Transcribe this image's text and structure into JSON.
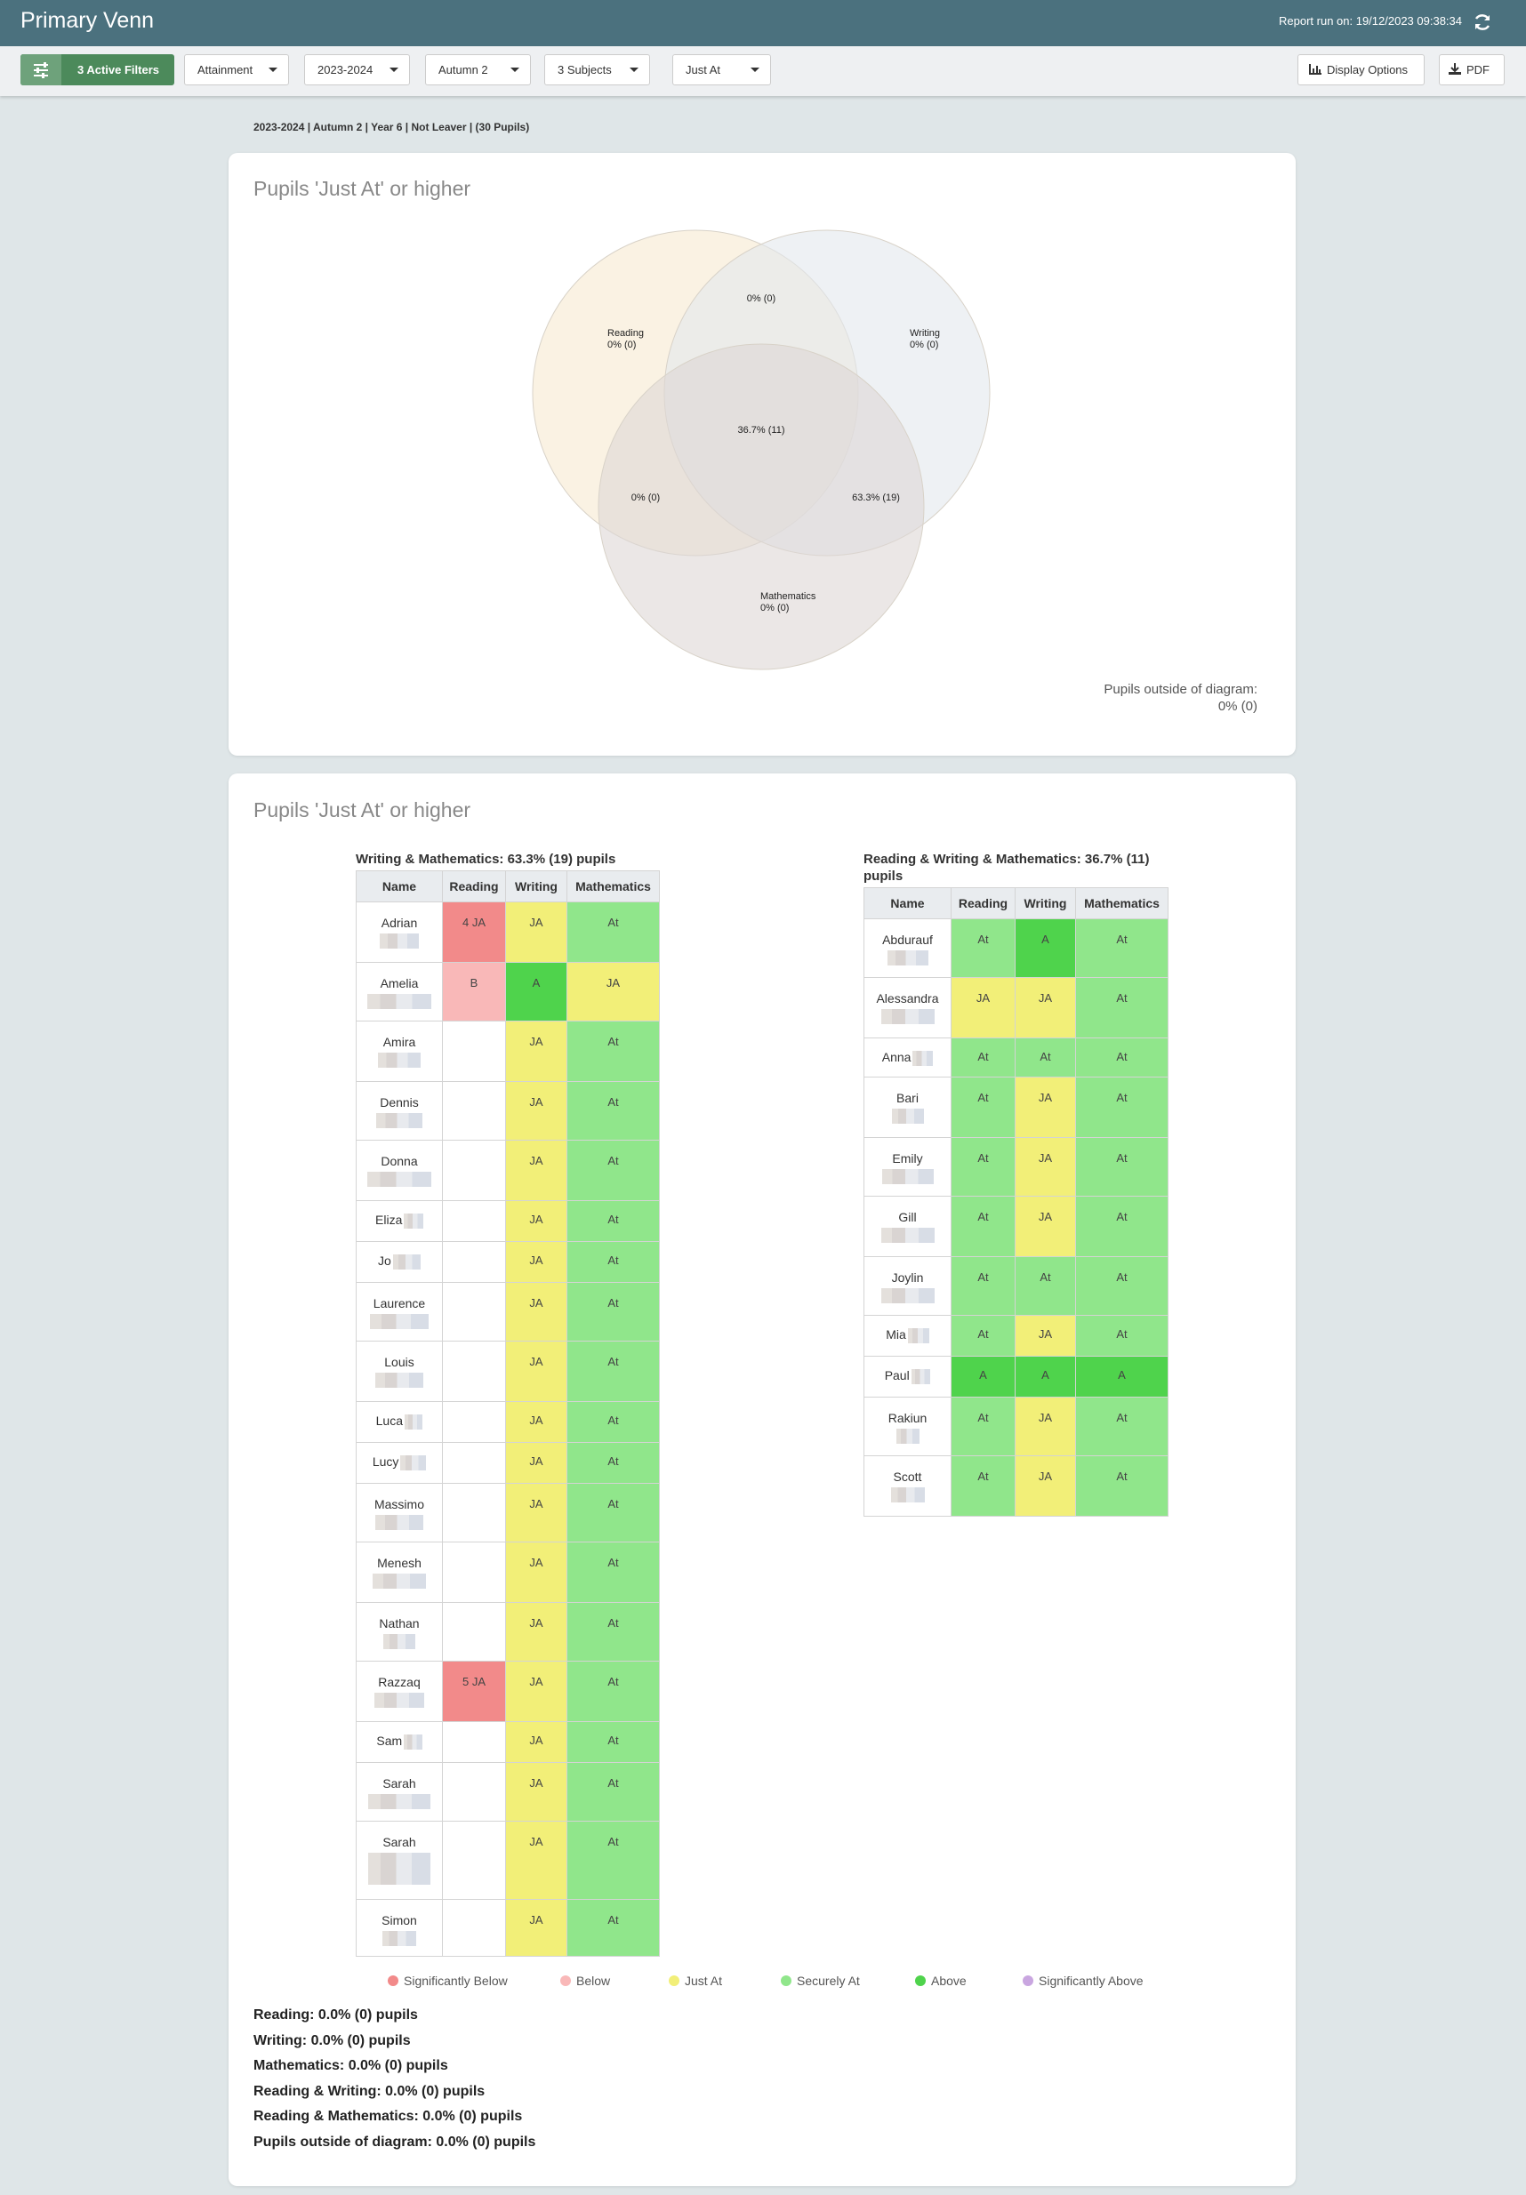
{
  "header": {
    "title": "Primary Venn",
    "report_run": "Report run on: 19/12/2023 09:38:34"
  },
  "toolbar": {
    "filters": "3 Active Filters",
    "dropdowns": [
      "Attainment",
      "2023-2024",
      "Autumn 2",
      "3 Subjects",
      "Just At"
    ],
    "display_options": "Display Options",
    "pdf": "PDF"
  },
  "context": "2023-2024 | Autumn 2 | Year 6 |  Not Leaver | (30 Pupils)",
  "venn": {
    "title": "Pupils 'Just At' or higher",
    "sets": [
      {
        "label": "Reading",
        "value": "0% (0)",
        "color": "#f6ead0"
      },
      {
        "label": "Writing",
        "value": "0% (0)",
        "color": "#e3e7ec"
      },
      {
        "label": "Mathematics",
        "value": "0% (0)",
        "color": "#ddd7d6"
      }
    ],
    "regions": [
      {
        "sets": "Reading & Writing",
        "value": "0% (0)"
      },
      {
        "sets": "Reading & Mathematics",
        "value": "0% (0)"
      },
      {
        "sets": "Writing & Mathematics",
        "value": "63.3% (19)"
      },
      {
        "sets": "Reading & Writing & Mathematics",
        "value": "36.7% (11)"
      }
    ],
    "outside_label": "Pupils outside of diagram:",
    "outside_value": "0% (0)"
  },
  "section_title": "Pupils 'Just At' or higher",
  "tables": [
    {
      "title": "Writing & Mathematics: 63.3% (19) pupils",
      "columns": [
        "Name",
        "Reading",
        "Writing",
        "Mathematics"
      ],
      "rows": [
        {
          "name": "Adrian",
          "cells": [
            {
              "text": "4 JA",
              "color": "#f28a8a"
            },
            {
              "text": "JA",
              "color": "#f2ef78"
            },
            {
              "text": "At",
              "color": "#90e68b"
            }
          ]
        },
        {
          "name": "Amelia",
          "cells": [
            {
              "text": "B",
              "color": "#f9b8b8"
            },
            {
              "text": "A",
              "color": "#4fd34c"
            },
            {
              "text": "JA",
              "color": "#f2ef78"
            }
          ]
        },
        {
          "name": "Amira",
          "cells": [
            null,
            {
              "text": "JA",
              "color": "#f2ef78"
            },
            {
              "text": "At",
              "color": "#90e68b"
            }
          ]
        },
        {
          "name": "Dennis",
          "cells": [
            null,
            {
              "text": "JA",
              "color": "#f2ef78"
            },
            {
              "text": "At",
              "color": "#90e68b"
            }
          ]
        },
        {
          "name": "Donna",
          "cells": [
            null,
            {
              "text": "JA",
              "color": "#f2ef78"
            },
            {
              "text": "At",
              "color": "#90e68b"
            }
          ]
        },
        {
          "name": "Eliza",
          "cells": [
            null,
            {
              "text": "JA",
              "color": "#f2ef78"
            },
            {
              "text": "At",
              "color": "#90e68b"
            }
          ]
        },
        {
          "name": "Jo",
          "cells": [
            null,
            {
              "text": "JA",
              "color": "#f2ef78"
            },
            {
              "text": "At",
              "color": "#90e68b"
            }
          ]
        },
        {
          "name": "Laurence",
          "cells": [
            null,
            {
              "text": "JA",
              "color": "#f2ef78"
            },
            {
              "text": "At",
              "color": "#90e68b"
            }
          ]
        },
        {
          "name": "Louis",
          "cells": [
            null,
            {
              "text": "JA",
              "color": "#f2ef78"
            },
            {
              "text": "At",
              "color": "#90e68b"
            }
          ]
        },
        {
          "name": "Luca",
          "cells": [
            null,
            {
              "text": "JA",
              "color": "#f2ef78"
            },
            {
              "text": "At",
              "color": "#90e68b"
            }
          ]
        },
        {
          "name": "Lucy",
          "cells": [
            null,
            {
              "text": "JA",
              "color": "#f2ef78"
            },
            {
              "text": "At",
              "color": "#90e68b"
            }
          ]
        },
        {
          "name": "Massimo",
          "cells": [
            null,
            {
              "text": "JA",
              "color": "#f2ef78"
            },
            {
              "text": "At",
              "color": "#90e68b"
            }
          ]
        },
        {
          "name": "Menesh",
          "cells": [
            null,
            {
              "text": "JA",
              "color": "#f2ef78"
            },
            {
              "text": "At",
              "color": "#90e68b"
            }
          ]
        },
        {
          "name": "Nathan",
          "cells": [
            null,
            {
              "text": "JA",
              "color": "#f2ef78"
            },
            {
              "text": "At",
              "color": "#90e68b"
            }
          ]
        },
        {
          "name": "Razzaq",
          "cells": [
            {
              "text": "5 JA",
              "color": "#f28a8a"
            },
            {
              "text": "JA",
              "color": "#f2ef78"
            },
            {
              "text": "At",
              "color": "#90e68b"
            }
          ]
        },
        {
          "name": "Sam",
          "cells": [
            null,
            {
              "text": "JA",
              "color": "#f2ef78"
            },
            {
              "text": "At",
              "color": "#90e68b"
            }
          ]
        },
        {
          "name": "Sarah",
          "cells": [
            null,
            {
              "text": "JA",
              "color": "#f2ef78"
            },
            {
              "text": "At",
              "color": "#90e68b"
            }
          ]
        },
        {
          "name": "Sarah",
          "cells": [
            null,
            {
              "text": "JA",
              "color": "#f2ef78"
            },
            {
              "text": "At",
              "color": "#90e68b"
            }
          ]
        },
        {
          "name": "Simon",
          "cells": [
            null,
            {
              "text": "JA",
              "color": "#f2ef78"
            },
            {
              "text": "At",
              "color": "#90e68b"
            }
          ]
        }
      ]
    },
    {
      "title": "Reading & Writing & Mathematics: 36.7% (11) pupils",
      "columns": [
        "Name",
        "Reading",
        "Writing",
        "Mathematics"
      ],
      "rows": [
        {
          "name": "Abdurauf",
          "cells": [
            {
              "text": "At",
              "color": "#90e68b"
            },
            {
              "text": "A",
              "color": "#4fd34c"
            },
            {
              "text": "At",
              "color": "#90e68b"
            }
          ]
        },
        {
          "name": "Alessandra",
          "cells": [
            {
              "text": "JA",
              "color": "#f2ef78"
            },
            {
              "text": "JA",
              "color": "#f2ef78"
            },
            {
              "text": "At",
              "color": "#90e68b"
            }
          ]
        },
        {
          "name": "Anna",
          "cells": [
            {
              "text": "At",
              "color": "#90e68b"
            },
            {
              "text": "At",
              "color": "#90e68b"
            },
            {
              "text": "At",
              "color": "#90e68b"
            }
          ]
        },
        {
          "name": "Bari",
          "cells": [
            {
              "text": "At",
              "color": "#90e68b"
            },
            {
              "text": "JA",
              "color": "#f2ef78"
            },
            {
              "text": "At",
              "color": "#90e68b"
            }
          ]
        },
        {
          "name": "Emily",
          "cells": [
            {
              "text": "At",
              "color": "#90e68b"
            },
            {
              "text": "JA",
              "color": "#f2ef78"
            },
            {
              "text": "At",
              "color": "#90e68b"
            }
          ]
        },
        {
          "name": "Gill",
          "cells": [
            {
              "text": "At",
              "color": "#90e68b"
            },
            {
              "text": "JA",
              "color": "#f2ef78"
            },
            {
              "text": "At",
              "color": "#90e68b"
            }
          ]
        },
        {
          "name": "Joylin",
          "cells": [
            {
              "text": "At",
              "color": "#90e68b"
            },
            {
              "text": "At",
              "color": "#90e68b"
            },
            {
              "text": "At",
              "color": "#90e68b"
            }
          ]
        },
        {
          "name": "Mia",
          "cells": [
            {
              "text": "At",
              "color": "#90e68b"
            },
            {
              "text": "JA",
              "color": "#f2ef78"
            },
            {
              "text": "At",
              "color": "#90e68b"
            }
          ]
        },
        {
          "name": "Paul",
          "cells": [
            {
              "text": "A",
              "color": "#4fd34c"
            },
            {
              "text": "A",
              "color": "#4fd34c"
            },
            {
              "text": "A",
              "color": "#4fd34c"
            }
          ]
        },
        {
          "name": "Rakiun",
          "cells": [
            {
              "text": "At",
              "color": "#90e68b"
            },
            {
              "text": "JA",
              "color": "#f2ef78"
            },
            {
              "text": "At",
              "color": "#90e68b"
            }
          ]
        },
        {
          "name": "Scott",
          "cells": [
            {
              "text": "At",
              "color": "#90e68b"
            },
            {
              "text": "JA",
              "color": "#f2ef78"
            },
            {
              "text": "At",
              "color": "#90e68b"
            }
          ]
        }
      ]
    }
  ],
  "legend": [
    {
      "label": "Significantly Below",
      "color": "#f28a8a"
    },
    {
      "label": "Below",
      "color": "#f9b8b8"
    },
    {
      "label": "Just At",
      "color": "#f2ef78"
    },
    {
      "label": "Securely At",
      "color": "#90e68b"
    },
    {
      "label": "Above",
      "color": "#4fd34c"
    },
    {
      "label": "Significantly Above",
      "color": "#c9a6e0"
    }
  ],
  "summary": [
    "Reading: 0.0% (0) pupils",
    "Writing: 0.0% (0) pupils",
    "Mathematics: 0.0% (0) pupils",
    "Reading & Writing: 0.0% (0) pupils",
    "Reading & Mathematics: 0.0% (0) pupils",
    "Pupils outside of diagram: 0.0% (0) pupils"
  ]
}
